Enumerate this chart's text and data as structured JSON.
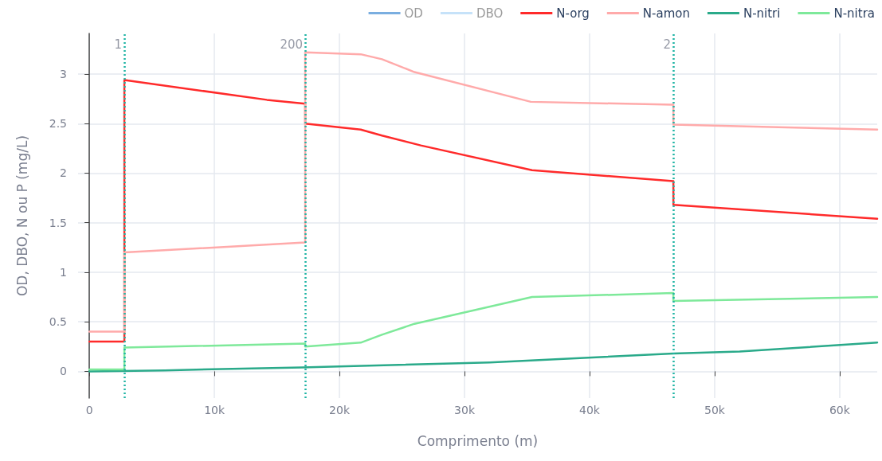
{
  "chart_data": {
    "type": "line",
    "xlabel": "Comprimento (m)",
    "ylabel": "OD, DBO, N ou P (mg/L)",
    "xlim": [
      -900,
      63000
    ],
    "xticks": [
      {
        "value": 0,
        "label": "0"
      },
      {
        "value": 10000,
        "label": "10k"
      },
      {
        "value": 20000,
        "label": "20k"
      },
      {
        "value": 30000,
        "label": "30k"
      },
      {
        "value": 40000,
        "label": "40k"
      },
      {
        "value": 50000,
        "label": "50k"
      },
      {
        "value": 60000,
        "label": "60k"
      }
    ],
    "ylim": [
      -0.27,
      3.41
    ],
    "yticks": [
      0,
      0.5,
      1,
      1.5,
      2,
      2.5,
      3
    ],
    "grid": true,
    "legend": "top right",
    "marker": "none",
    "line_style": "solid",
    "series": [
      {
        "name": "OD",
        "color": "#7aaee0"
      },
      {
        "name": "DBO",
        "color": "#c6e2f9"
      },
      {
        "name": "N-org",
        "color": "#ff2a2a",
        "x": [
          0,
          2800,
          2800,
          14200,
          17260,
          17260,
          21700,
          23400,
          26500,
          35400,
          46700,
          46700,
          63000
        ],
        "values": [
          0.3,
          0.3,
          2.94,
          2.74,
          2.7,
          2.5,
          2.44,
          2.38,
          2.28,
          2.03,
          1.92,
          1.68,
          1.54
        ]
      },
      {
        "name": "N-amon",
        "color": "#ffaaaa",
        "x": [
          0,
          2800,
          2800,
          17260,
          17260,
          21700,
          23400,
          26000,
          35300,
          46700,
          46700,
          63000
        ],
        "values": [
          0.4,
          0.4,
          1.2,
          1.3,
          3.22,
          3.2,
          3.15,
          3.02,
          2.72,
          2.69,
          2.49,
          2.44
        ]
      },
      {
        "name": "N-nitri",
        "color": "#2aaa8a",
        "x": [
          0,
          6000,
          17000,
          32000,
          46700,
          52000,
          63000
        ],
        "values": [
          0,
          0.01,
          0.04,
          0.09,
          0.18,
          0.2,
          0.29
        ]
      },
      {
        "name": "N-nitra",
        "color": "#7ee99a",
        "x": [
          0,
          2800,
          2800,
          17260,
          17260,
          21700,
          23400,
          26000,
          35400,
          46700,
          46700,
          63000
        ],
        "values": [
          0.02,
          0.02,
          0.24,
          0.28,
          0.25,
          0.29,
          0.37,
          0.48,
          0.75,
          0.79,
          0.71,
          0.75
        ]
      }
    ],
    "ref_lines": [
      {
        "axis": "x",
        "value": 2800,
        "color": "#22b5a5",
        "line_style": "dotted"
      },
      {
        "axis": "x",
        "value": 17260,
        "color": "#22b5a5",
        "line_style": "dotted"
      },
      {
        "axis": "x",
        "value": 46700,
        "color": "#22b5a5",
        "line_style": "dotted"
      }
    ],
    "annotations": [
      {
        "text": "1",
        "x": 2800,
        "y": 3.3
      },
      {
        "text": "200",
        "x": 17260,
        "y": 3.3
      },
      {
        "text": "2",
        "x": 46700,
        "y": 3.3
      }
    ]
  }
}
